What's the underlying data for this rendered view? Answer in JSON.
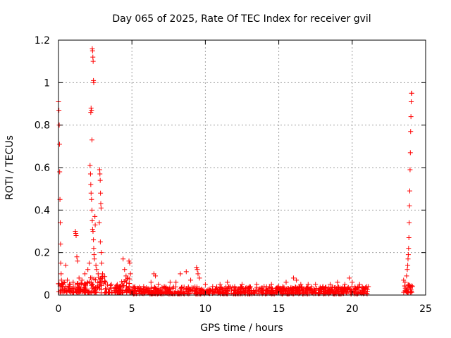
{
  "chart_data": {
    "type": "scatter",
    "title": "Day 065 of 2025, Rate Of TEC Index for receiver gvil",
    "xlabel": "GPS time / hours",
    "ylabel": "ROTI / TECUs",
    "xlim": [
      0,
      25
    ],
    "ylim": [
      0,
      1.2
    ],
    "grid": true,
    "x_ticks": [
      0,
      5,
      10,
      15,
      20,
      25
    ],
    "y_ticks": [
      0,
      0.2,
      0.4,
      0.6,
      0.8,
      1,
      1.2
    ],
    "x_tick_labels": [
      "0",
      "5",
      "10",
      "15",
      "20",
      "25"
    ],
    "y_tick_labels": [
      "0",
      "0.2",
      "0.4",
      "0.6",
      "0.8",
      "1",
      "1.2"
    ],
    "marker": "+",
    "marker_color": "#ff0000",
    "series": [
      {
        "points": [
          [
            0.0,
            0.91
          ],
          [
            0.03,
            0.87
          ],
          [
            0.05,
            0.8
          ],
          [
            0.07,
            0.71
          ],
          [
            0.08,
            0.58
          ],
          [
            0.1,
            0.45
          ],
          [
            0.12,
            0.34
          ],
          [
            0.14,
            0.24
          ],
          [
            0.15,
            0.15
          ],
          [
            0.18,
            0.1
          ],
          [
            0.2,
            0.07
          ],
          [
            0.25,
            0.05
          ],
          [
            0.3,
            0.04
          ],
          [
            0.4,
            0.06
          ],
          [
            0.5,
            0.14
          ],
          [
            0.6,
            0.07
          ],
          [
            0.8,
            0.05
          ],
          [
            1.0,
            0.06
          ],
          [
            1.15,
            0.3
          ],
          [
            1.18,
            0.29
          ],
          [
            1.2,
            0.28
          ],
          [
            1.25,
            0.18
          ],
          [
            1.3,
            0.16
          ],
          [
            1.4,
            0.08
          ],
          [
            1.6,
            0.07
          ],
          [
            1.8,
            0.1
          ],
          [
            2.0,
            0.12
          ],
          [
            2.1,
            0.15
          ],
          [
            2.15,
            0.61
          ],
          [
            2.18,
            0.57
          ],
          [
            2.2,
            0.86
          ],
          [
            2.22,
            0.88
          ],
          [
            2.25,
            0.87
          ],
          [
            2.28,
            0.73
          ],
          [
            2.3,
            1.16
          ],
          [
            2.32,
            1.15
          ],
          [
            2.34,
            1.12
          ],
          [
            2.36,
            1.1
          ],
          [
            2.38,
            1.01
          ],
          [
            2.4,
            1.0
          ],
          [
            2.2,
            0.52
          ],
          [
            2.22,
            0.48
          ],
          [
            2.25,
            0.45
          ],
          [
            2.28,
            0.4
          ],
          [
            2.3,
            0.35
          ],
          [
            2.32,
            0.31
          ],
          [
            2.35,
            0.3
          ],
          [
            2.38,
            0.26
          ],
          [
            2.4,
            0.22
          ],
          [
            2.42,
            0.19
          ],
          [
            2.45,
            0.17
          ],
          [
            2.48,
            0.37
          ],
          [
            2.5,
            0.33
          ],
          [
            2.55,
            0.14
          ],
          [
            2.6,
            0.12
          ],
          [
            2.7,
            0.1
          ],
          [
            2.8,
            0.59
          ],
          [
            2.82,
            0.57
          ],
          [
            2.84,
            0.54
          ],
          [
            2.86,
            0.48
          ],
          [
            2.88,
            0.43
          ],
          [
            2.9,
            0.41
          ],
          [
            2.78,
            0.34
          ],
          [
            2.85,
            0.25
          ],
          [
            2.92,
            0.2
          ],
          [
            2.95,
            0.15
          ],
          [
            3.0,
            0.1
          ],
          [
            3.2,
            0.06
          ],
          [
            3.6,
            0.05
          ],
          [
            4.0,
            0.05
          ],
          [
            4.4,
            0.17
          ],
          [
            4.5,
            0.12
          ],
          [
            4.6,
            0.09
          ],
          [
            4.7,
            0.08
          ],
          [
            4.8,
            0.16
          ],
          [
            4.85,
            0.15
          ],
          [
            4.9,
            0.1
          ],
          [
            5.2,
            0.04
          ],
          [
            5.8,
            0.04
          ],
          [
            6.3,
            0.06
          ],
          [
            6.5,
            0.1
          ],
          [
            6.6,
            0.09
          ],
          [
            6.8,
            0.05
          ],
          [
            7.2,
            0.04
          ],
          [
            7.6,
            0.06
          ],
          [
            8.0,
            0.06
          ],
          [
            8.3,
            0.1
          ],
          [
            8.7,
            0.11
          ],
          [
            9.0,
            0.07
          ],
          [
            9.4,
            0.13
          ],
          [
            9.45,
            0.12
          ],
          [
            9.5,
            0.1
          ],
          [
            9.6,
            0.08
          ],
          [
            10.0,
            0.05
          ],
          [
            10.5,
            0.04
          ],
          [
            11.0,
            0.05
          ],
          [
            11.5,
            0.06
          ],
          [
            12.0,
            0.04
          ],
          [
            12.5,
            0.05
          ],
          [
            13.0,
            0.04
          ],
          [
            13.5,
            0.05
          ],
          [
            14.0,
            0.04
          ],
          [
            14.5,
            0.05
          ],
          [
            15.0,
            0.04
          ],
          [
            15.5,
            0.06
          ],
          [
            16.0,
            0.08
          ],
          [
            16.2,
            0.07
          ],
          [
            16.5,
            0.05
          ],
          [
            17.0,
            0.05
          ],
          [
            17.5,
            0.05
          ],
          [
            18.0,
            0.04
          ],
          [
            18.5,
            0.05
          ],
          [
            19.0,
            0.06
          ],
          [
            19.5,
            0.05
          ],
          [
            19.8,
            0.08
          ],
          [
            20.0,
            0.06
          ],
          [
            20.5,
            0.05
          ],
          [
            21.0,
            0.04
          ],
          [
            23.5,
            0.07
          ],
          [
            23.6,
            0.06
          ],
          [
            23.7,
            0.09
          ],
          [
            23.75,
            0.12
          ],
          [
            23.78,
            0.14
          ],
          [
            23.8,
            0.17
          ],
          [
            23.82,
            0.19
          ],
          [
            23.84,
            0.22
          ],
          [
            23.86,
            0.27
          ],
          [
            23.88,
            0.34
          ],
          [
            23.9,
            0.42
          ],
          [
            23.92,
            0.49
          ],
          [
            23.94,
            0.59
          ],
          [
            23.96,
            0.67
          ],
          [
            23.98,
            0.77
          ],
          [
            24.0,
            0.84
          ],
          [
            24.02,
            0.91
          ],
          [
            24.04,
            0.95
          ],
          [
            24.06,
            0.95
          ],
          [
            24.1,
            0.04
          ]
        ],
        "baseline_band": [
          {
            "x_from": 0.0,
            "x_to": 2.0,
            "y_min": 0.01,
            "y_max": 0.06
          },
          {
            "x_from": 2.0,
            "x_to": 3.2,
            "y_min": 0.01,
            "y_max": 0.09
          },
          {
            "x_from": 3.2,
            "x_to": 4.3,
            "y_min": 0.01,
            "y_max": 0.05
          },
          {
            "x_from": 4.3,
            "x_to": 5.0,
            "y_min": 0.01,
            "y_max": 0.08
          },
          {
            "x_from": 5.0,
            "x_to": 21.1,
            "y_min": 0.005,
            "y_max": 0.04
          },
          {
            "x_from": 23.5,
            "x_to": 24.1,
            "y_min": 0.01,
            "y_max": 0.05
          }
        ]
      }
    ]
  }
}
